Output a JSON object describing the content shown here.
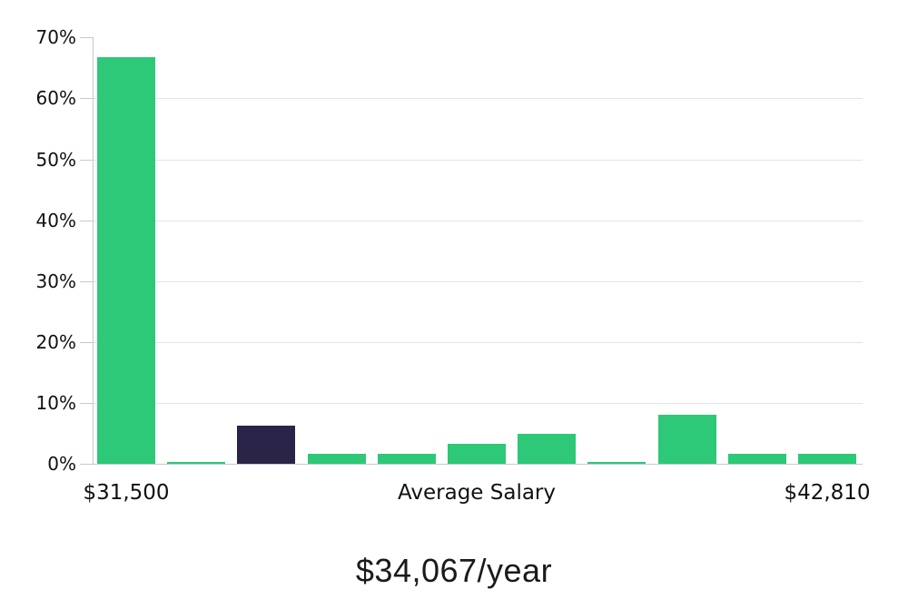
{
  "chart_data": {
    "type": "bar",
    "title": "$34,067/year",
    "values": [
      66.8,
      0.3,
      6.3,
      1.7,
      1.7,
      3.3,
      4.9,
      0.3,
      8.0,
      1.7,
      1.7
    ],
    "highlight_bar_index": 2,
    "y_tick_labels": [
      "0%",
      "10%",
      "20%",
      "30%",
      "40%",
      "50%",
      "60%",
      "70%"
    ],
    "y_tick_values": [
      0,
      10,
      20,
      30,
      40,
      50,
      60,
      70
    ],
    "ylim": [
      0,
      70
    ],
    "gridline_values": [
      10,
      20,
      30,
      40,
      50,
      60
    ],
    "x_axis_labels": [
      "$31,500",
      "Average Salary",
      "$42,810"
    ],
    "legend": "none",
    "grid": "horizontal"
  },
  "colors": {
    "bar_green": "#2dc878",
    "bar_navy": "#2a2548",
    "gridline": "#e4e4e4",
    "axis_line": "#c9c9c9",
    "text": "#111111"
  }
}
